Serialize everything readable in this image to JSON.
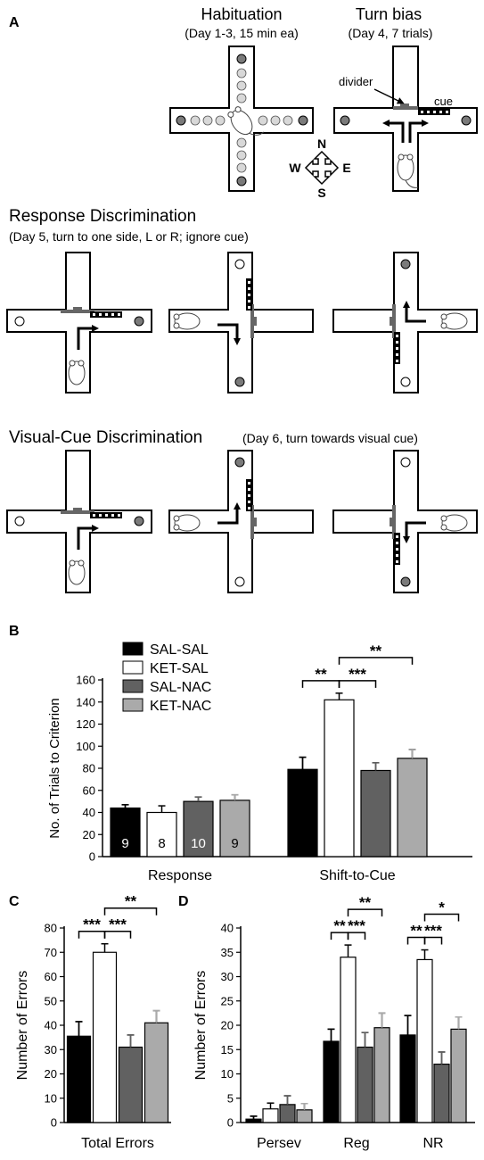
{
  "panel_letters": {
    "a": "A",
    "b": "B",
    "c": "C",
    "d": "D"
  },
  "habituation": {
    "title": "Habituation",
    "subtitle": "(Day 1-3, 15 min ea)"
  },
  "turn_bias": {
    "title": "Turn bias",
    "subtitle": "(Day 4, 7 trials)",
    "divider_label": "divider",
    "cue_label": "cue"
  },
  "compass": {
    "n": "N",
    "s": "S",
    "e": "E",
    "w": "W"
  },
  "response_discrimination": {
    "title": "Response Discrimination",
    "subtitle": "(Day 5, turn to one side, L or R; ignore cue)"
  },
  "visual_cue_discrimination": {
    "title": "Visual-Cue Discrimination",
    "subtitle": "(Day 6, turn towards visual cue)"
  },
  "colors": {
    "SAL-SAL": "#000000",
    "KET-SAL": "#ffffff",
    "SAL-NAC": "#616161",
    "KET-NAC": "#aaaaaa"
  },
  "chart_data": [
    {
      "panel": "B",
      "type": "bar",
      "ylabel": "No. of Trials to Criterion",
      "ylim": [
        0,
        160
      ],
      "yticks": [
        0,
        20,
        40,
        60,
        80,
        100,
        120,
        140,
        160
      ],
      "categories": [
        "Response",
        "Shift-to-Cue"
      ],
      "legend": {
        "position": "top-left",
        "entries": [
          "SAL-SAL",
          "KET-SAL",
          "SAL-NAC",
          "KET-NAC"
        ]
      },
      "series": [
        {
          "name": "SAL-SAL",
          "values": [
            44,
            79
          ],
          "errors": [
            3,
            11
          ],
          "n": "9"
        },
        {
          "name": "KET-SAL",
          "values": [
            40,
            142
          ],
          "errors": [
            6,
            6
          ],
          "n": "8"
        },
        {
          "name": "SAL-NAC",
          "values": [
            50,
            78
          ],
          "errors": [
            4,
            7
          ],
          "n": "10"
        },
        {
          "name": "KET-NAC",
          "values": [
            51,
            89
          ],
          "errors": [
            5,
            8
          ],
          "n": "9"
        }
      ],
      "significance": [
        {
          "category": "Shift-to-Cue",
          "from": "SAL-SAL",
          "to": "KET-SAL",
          "label": "**"
        },
        {
          "category": "Shift-to-Cue",
          "from": "KET-SAL",
          "to": "SAL-NAC",
          "label": "***"
        },
        {
          "category": "Shift-to-Cue",
          "from": "KET-SAL",
          "to": "KET-NAC",
          "label": "**"
        }
      ]
    },
    {
      "panel": "C",
      "type": "bar",
      "ylabel": "Number of Errors",
      "ylim": [
        0,
        80
      ],
      "yticks": [
        0,
        10,
        20,
        30,
        40,
        50,
        60,
        70,
        80
      ],
      "categories": [
        "Total Errors"
      ],
      "series": [
        {
          "name": "SAL-SAL",
          "values": [
            35.5
          ],
          "errors": [
            6
          ]
        },
        {
          "name": "KET-SAL",
          "values": [
            70
          ],
          "errors": [
            3.5
          ]
        },
        {
          "name": "SAL-NAC",
          "values": [
            31
          ],
          "errors": [
            5
          ]
        },
        {
          "name": "KET-NAC",
          "values": [
            41
          ],
          "errors": [
            5
          ]
        }
      ],
      "significance": [
        {
          "category": "Total Errors",
          "from": "SAL-SAL",
          "to": "KET-SAL",
          "label": "***"
        },
        {
          "category": "Total Errors",
          "from": "KET-SAL",
          "to": "SAL-NAC",
          "label": "***"
        },
        {
          "category": "Total Errors",
          "from": "KET-SAL",
          "to": "KET-NAC",
          "label": "**"
        }
      ]
    },
    {
      "panel": "D",
      "type": "bar",
      "ylabel": "Number of Errors",
      "ylim": [
        0,
        40
      ],
      "yticks": [
        0,
        5,
        10,
        15,
        20,
        25,
        30,
        35,
        40
      ],
      "categories": [
        "Persev",
        "Reg",
        "NR"
      ],
      "series": [
        {
          "name": "SAL-SAL",
          "values": [
            0.7,
            16.7,
            18
          ],
          "errors": [
            0.6,
            2.5,
            4
          ]
        },
        {
          "name": "KET-SAL",
          "values": [
            2.8,
            34,
            33.5
          ],
          "errors": [
            1.2,
            2.5,
            2
          ]
        },
        {
          "name": "SAL-NAC",
          "values": [
            3.7,
            15.5,
            12
          ],
          "errors": [
            1.8,
            3,
            2.5
          ]
        },
        {
          "name": "KET-NAC",
          "values": [
            2.6,
            19.5,
            19.2
          ],
          "errors": [
            1.3,
            3,
            2.5
          ]
        }
      ],
      "significance": [
        {
          "category": "Reg",
          "from": "SAL-SAL",
          "to": "KET-SAL",
          "label": "**"
        },
        {
          "category": "Reg",
          "from": "KET-SAL",
          "to": "SAL-NAC",
          "label": "***"
        },
        {
          "category": "Reg",
          "from": "KET-SAL",
          "to": "KET-NAC",
          "label": "**"
        },
        {
          "category": "NR",
          "from": "SAL-SAL",
          "to": "KET-SAL",
          "label": "**"
        },
        {
          "category": "NR",
          "from": "KET-SAL",
          "to": "SAL-NAC",
          "label": "***"
        },
        {
          "category": "NR",
          "from": "KET-SAL",
          "to": "KET-NAC",
          "label": "*"
        }
      ]
    }
  ]
}
